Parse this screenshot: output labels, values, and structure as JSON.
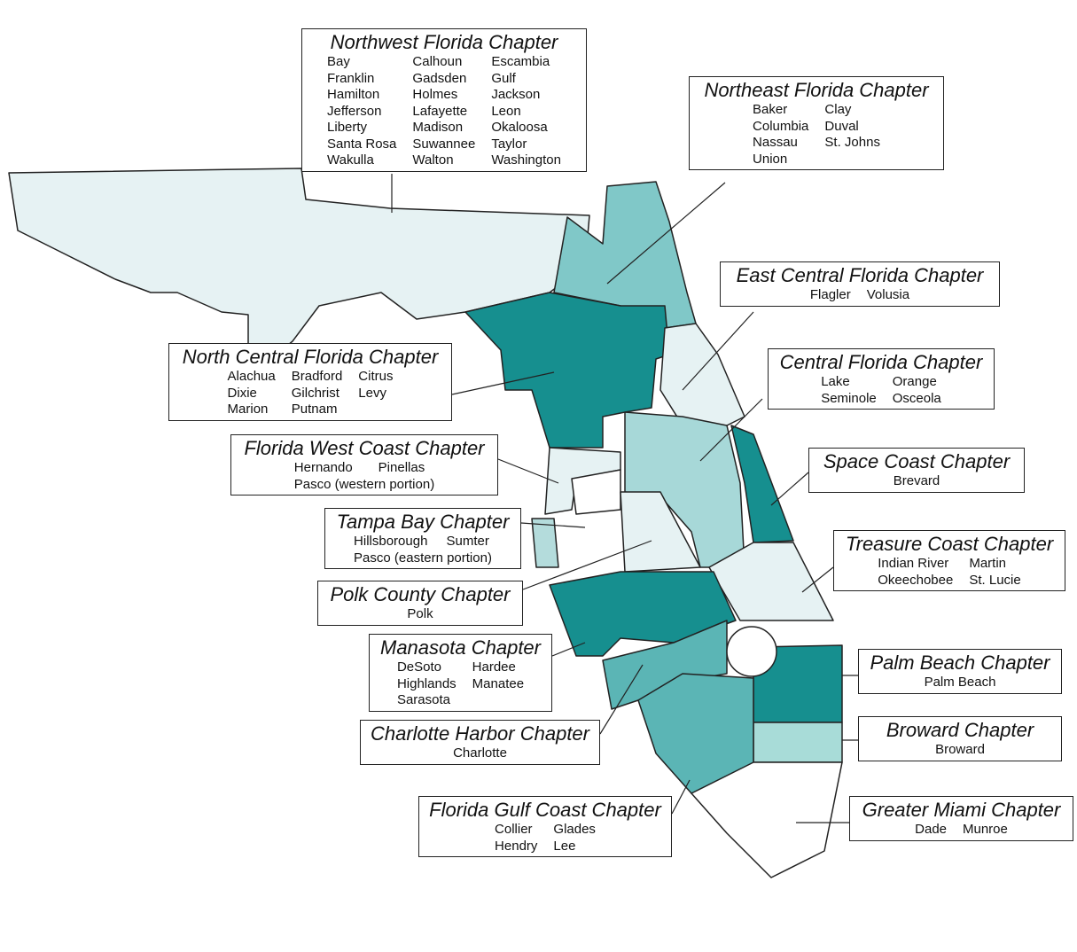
{
  "chapters": [
    {
      "title": "Northwest Florida Chapter",
      "counties": [
        "Bay",
        "Calhoun",
        "Escambia",
        "Franklin",
        "Gadsden",
        "Gulf",
        "Hamilton",
        "Holmes",
        "Jackson",
        "Jefferson",
        "Lafayette",
        "Leon",
        "Liberty",
        "Madison",
        "Okaloosa",
        "Santa Rosa",
        "Suwannee",
        "Taylor",
        "Wakulla",
        "Walton",
        "Washington"
      ]
    },
    {
      "title": "Northeast Florida Chapter",
      "counties": [
        "Baker",
        "Clay",
        "Columbia",
        "Duval",
        "Nassau",
        "St. Johns",
        "Union"
      ]
    },
    {
      "title": "East Central Florida Chapter",
      "counties": [
        "Flagler",
        "Volusia"
      ]
    },
    {
      "title": "North Central Florida Chapter",
      "counties": [
        "Alachua",
        "Bradford",
        "Citrus",
        "Dixie",
        "Gilchrist",
        "Levy",
        "Marion",
        "Putnam"
      ]
    },
    {
      "title": "Central Florida Chapter",
      "counties": [
        "Lake",
        "Orange",
        "Seminole",
        "Osceola"
      ]
    },
    {
      "title": "Florida West Coast Chapter",
      "counties": [
        "Hernando",
        "Pinellas",
        "Pasco (western portion)"
      ]
    },
    {
      "title": "Space Coast Chapter",
      "counties": [
        "Brevard"
      ]
    },
    {
      "title": "Tampa Bay Chapter",
      "counties": [
        "Hillsborough",
        "Sumter",
        "Pasco (eastern portion)"
      ]
    },
    {
      "title": "Treasure Coast Chapter",
      "counties": [
        "Indian River",
        "Martin",
        "Okeechobee",
        "St. Lucie"
      ]
    },
    {
      "title": "Polk County Chapter",
      "counties": [
        "Polk"
      ]
    },
    {
      "title": "Manasota Chapter",
      "counties": [
        "DeSoto",
        "Hardee",
        "Highlands",
        "Manatee",
        "Sarasota"
      ]
    },
    {
      "title": "Palm Beach Chapter",
      "counties": [
        "Palm Beach"
      ]
    },
    {
      "title": "Charlotte Harbor Chapter",
      "counties": [
        "Charlotte"
      ]
    },
    {
      "title": "Broward Chapter",
      "counties": [
        "Broward"
      ]
    },
    {
      "title": "Florida Gulf Coast Chapter",
      "counties": [
        "Collier",
        "Glades",
        "Hendry",
        "Lee"
      ]
    },
    {
      "title": "Greater Miami Chapter",
      "counties": [
        "Dade",
        "Munroe"
      ]
    }
  ]
}
